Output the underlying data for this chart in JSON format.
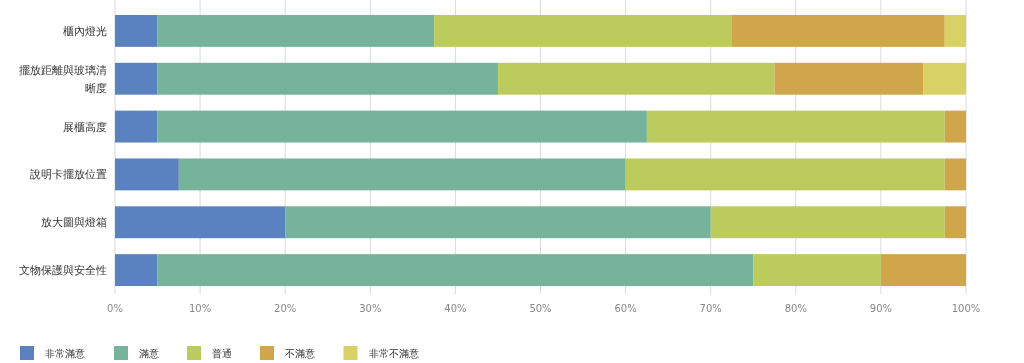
{
  "chart_data": {
    "type": "bar",
    "orientation": "horizontal",
    "stacked": true,
    "categories": [
      "櫃內燈光",
      "擺放距離與玻璃清晰度",
      "展櫃高度",
      "說明卡擺放位置",
      "放大圖與燈箱",
      "文物保護與安全性"
    ],
    "series": [
      {
        "name": "非常滿意",
        "color": "#5b82c0",
        "values": [
          5,
          5,
          5,
          7.5,
          20,
          5
        ]
      },
      {
        "name": "滿意",
        "color": "#75b39a",
        "values": [
          32.5,
          40,
          57.5,
          52.5,
          50,
          70
        ]
      },
      {
        "name": "普通",
        "color": "#bbcc5c",
        "values": [
          35,
          32.5,
          35,
          37.5,
          27.5,
          15
        ]
      },
      {
        "name": "不滿意",
        "color": "#cfa64a",
        "values": [
          25,
          17.5,
          2.5,
          2.5,
          2.5,
          10
        ]
      },
      {
        "name": "非常不滿意",
        "color": "#d8d266",
        "values": [
          2.5,
          5,
          0,
          0,
          0,
          0
        ]
      }
    ],
    "xlim": [
      0,
      100
    ],
    "xticks": [
      {
        "value": 0,
        "label": "0%"
      },
      {
        "value": 10,
        "label": "10%"
      },
      {
        "value": 20,
        "label": "20%"
      },
      {
        "value": 30,
        "label": "30%"
      },
      {
        "value": 40,
        "label": "40%"
      },
      {
        "value": 50,
        "label": "50%"
      },
      {
        "value": 60,
        "label": "60%"
      },
      {
        "value": 70,
        "label": "70%"
      },
      {
        "value": 80,
        "label": "80%"
      },
      {
        "value": 90,
        "label": "90%"
      },
      {
        "value": 100,
        "label": "100%"
      }
    ],
    "grid": "x",
    "legend": "bottom left"
  }
}
